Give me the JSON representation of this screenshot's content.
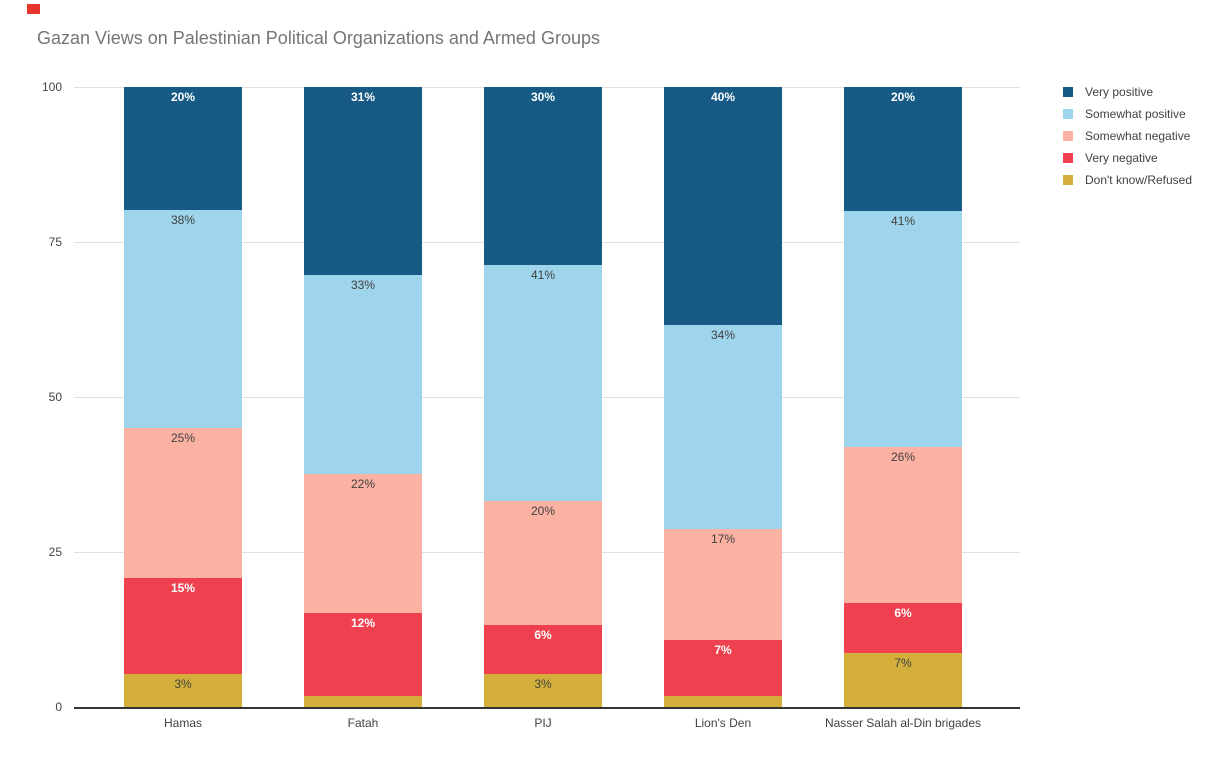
{
  "decorations": {
    "red_marker_color": "#e8352c"
  },
  "chart_data": {
    "type": "bar",
    "stacked": true,
    "title": "Gazan Views on Palestinian Political Organizations and Armed Groups",
    "categories": [
      "Hamas",
      "Fatah",
      "PIJ",
      "Lion's Den",
      "Nasser Salah al-Din brigades"
    ],
    "series": [
      {
        "name": "Very positive",
        "color": "#165a85",
        "label_color": "#ffffff",
        "label_bold": true,
        "values": [
          20,
          31,
          30,
          40,
          20
        ],
        "labels": [
          "20%",
          "31%",
          "30%",
          "40%",
          "20%"
        ]
      },
      {
        "name": "Somewhat positive",
        "color": "#9ed4ec",
        "label_color": "#404040",
        "label_bold": false,
        "values": [
          38,
          33,
          41,
          34,
          41
        ],
        "labels": [
          "38%",
          "33%",
          "41%",
          "34%",
          "41%"
        ]
      },
      {
        "name": "Somewhat negative",
        "color": "#fbb2a3",
        "label_color": "#404040",
        "label_bold": false,
        "values": [
          25,
          22,
          20,
          17,
          26
        ],
        "labels": [
          "25%",
          "22%",
          "20%",
          "17%",
          "26%"
        ]
      },
      {
        "name": "Very negative",
        "color": "#ee404e",
        "label_color": "#ffffff",
        "label_bold": true,
        "values": [
          15,
          12,
          6,
          7,
          6
        ],
        "labels": [
          "15%",
          "12%",
          "6%",
          "7%",
          "6%"
        ]
      },
      {
        "name": "Don't know/Refused",
        "color": "#d4af3c",
        "label_color": "#404040",
        "label_bold": false,
        "values": [
          3,
          2,
          3,
          2,
          7
        ],
        "labels": [
          "3%",
          "",
          "3%",
          "",
          "7%"
        ]
      }
    ],
    "ylim": [
      0,
      100
    ],
    "yticks": [
      100,
      75,
      50,
      25,
      0
    ],
    "grid": true,
    "legend_position": "right"
  }
}
